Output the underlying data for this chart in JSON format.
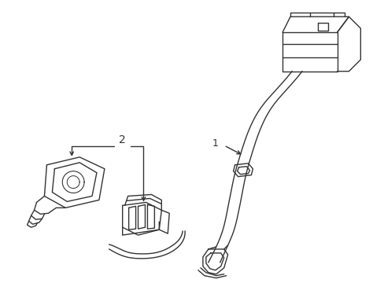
{
  "background_color": "#ffffff",
  "line_color": "#333333",
  "line_width": 1.0,
  "label1": "1",
  "label2": "2",
  "figsize": [
    4.89,
    3.6
  ],
  "dpi": 100
}
